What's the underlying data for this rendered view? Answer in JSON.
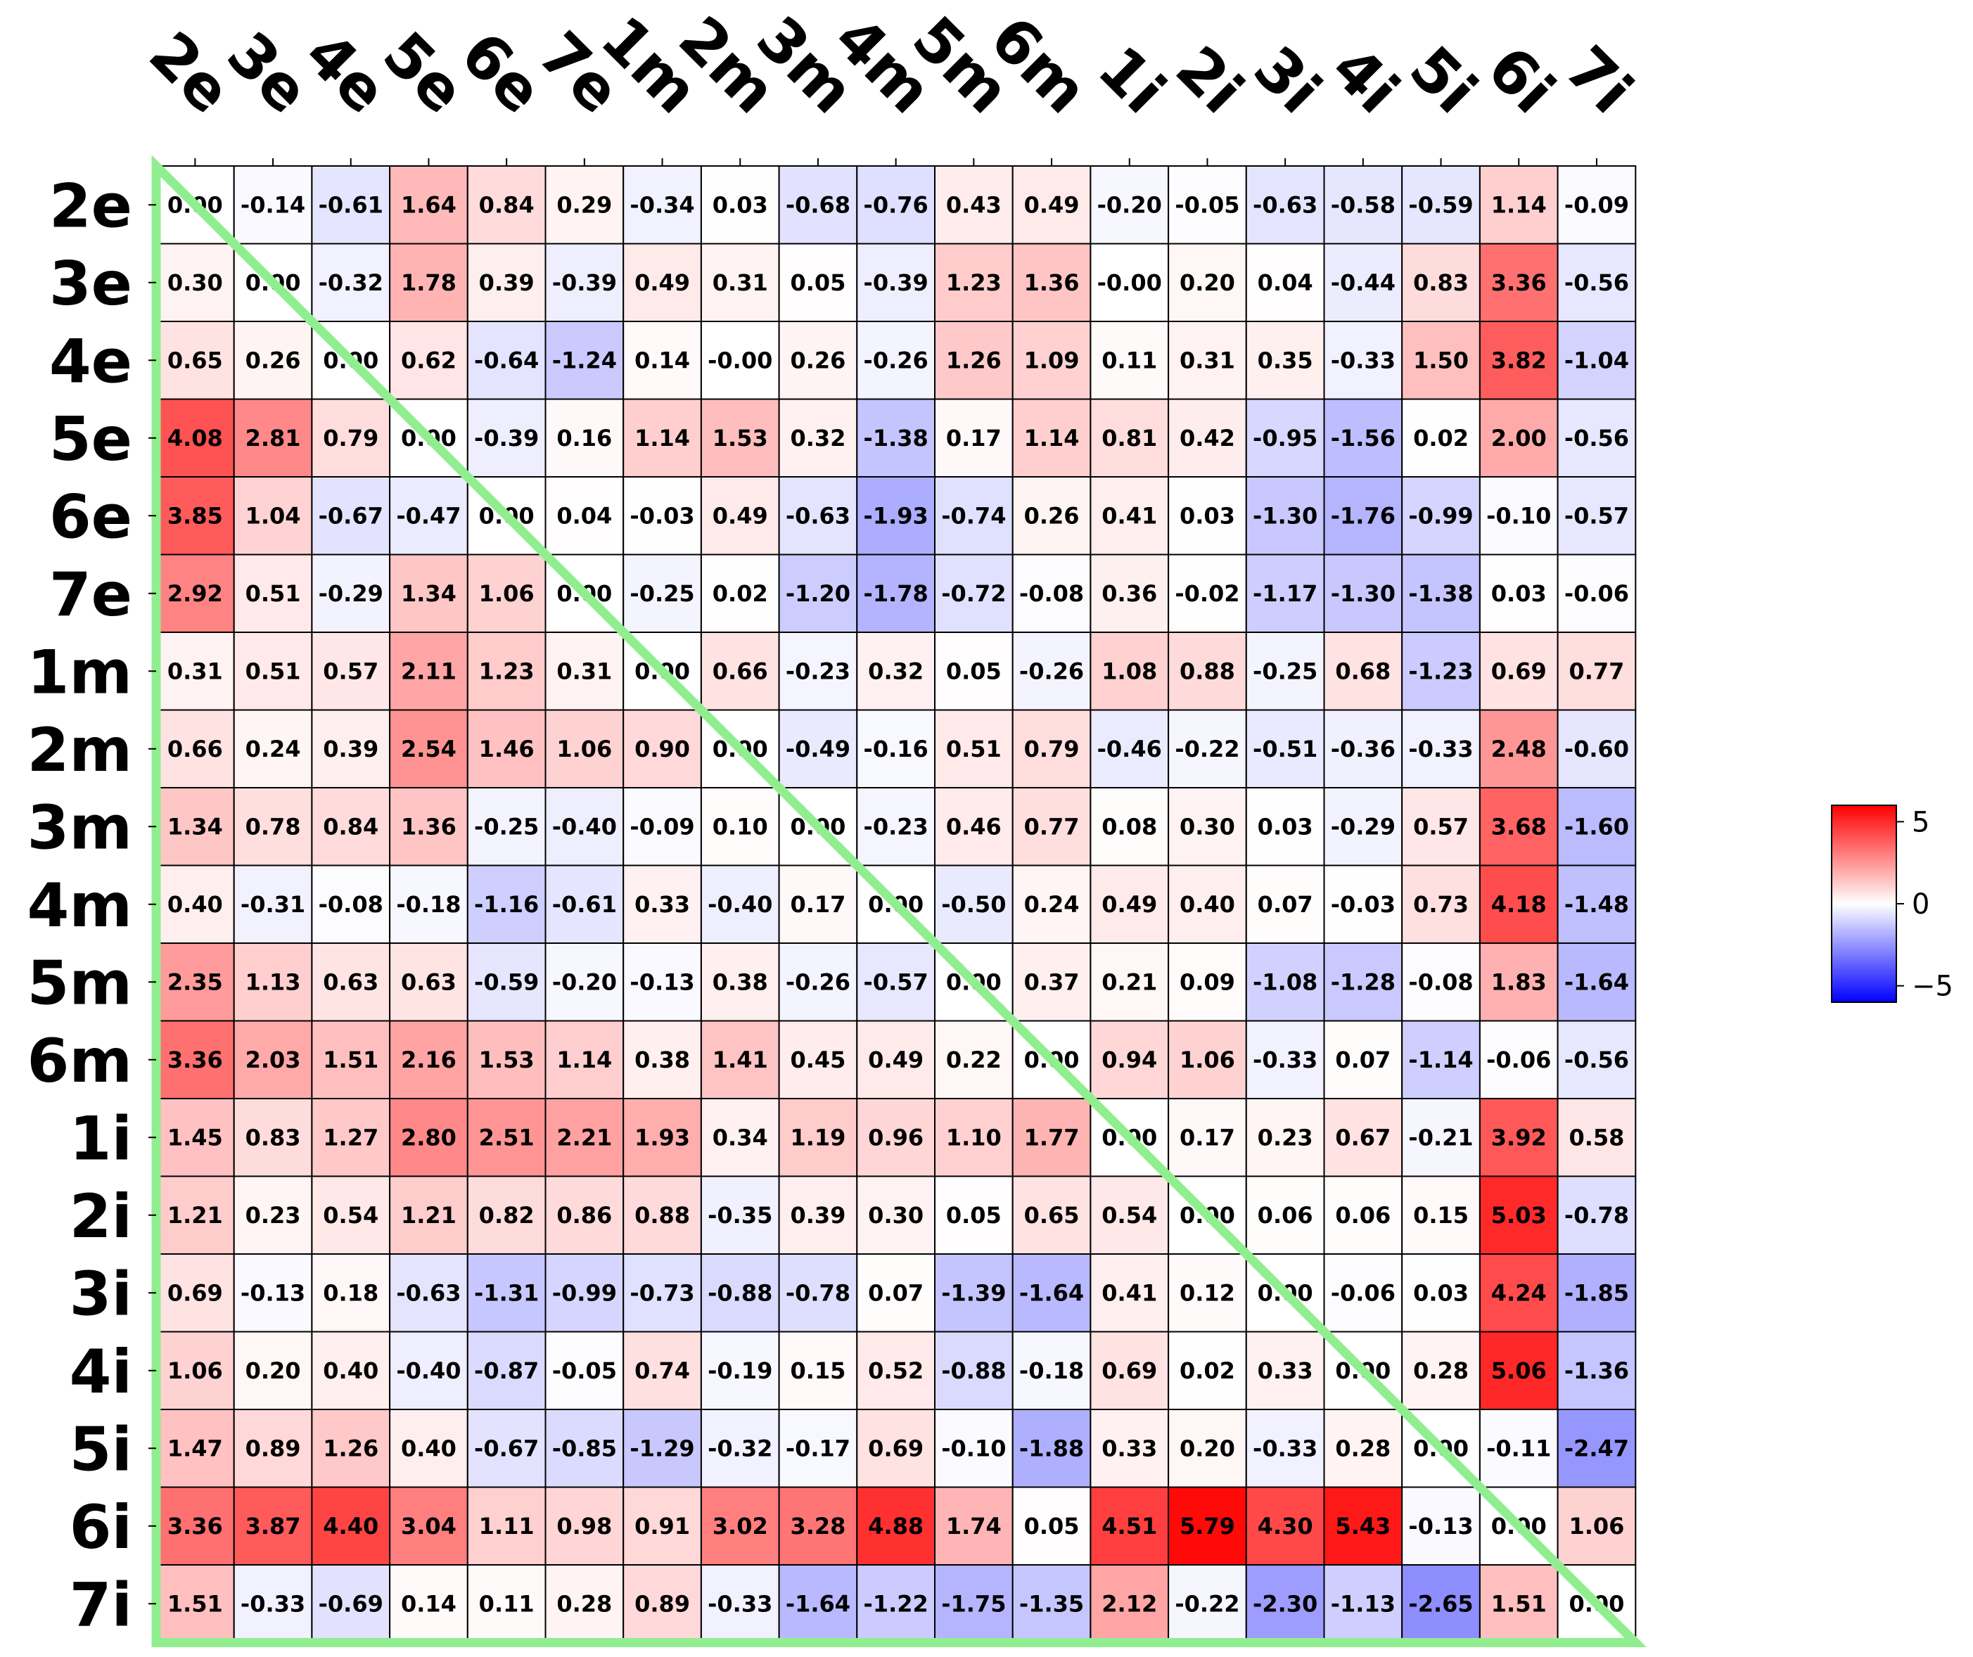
{
  "chart_data": {
    "type": "heatmap",
    "row_labels": [
      "2e",
      "3e",
      "4e",
      "5e",
      "6e",
      "7e",
      "1m",
      "2m",
      "3m",
      "4m",
      "5m",
      "6m",
      "1i",
      "2i",
      "3i",
      "4i",
      "5i",
      "6i",
      "7i"
    ],
    "col_labels": [
      "2e",
      "3e",
      "4e",
      "5e",
      "6e",
      "7e",
      "1m",
      "2m",
      "3m",
      "4m",
      "5m",
      "6m",
      "1i",
      "2i",
      "3i",
      "4i",
      "5i",
      "6i",
      "7i"
    ],
    "values": [
      [
        "0.00",
        "-0.14",
        "-0.61",
        "1.64",
        "0.84",
        "0.29",
        "-0.34",
        "0.03",
        "-0.68",
        "-0.76",
        "0.43",
        "0.49",
        "-0.20",
        "-0.05",
        "-0.63",
        "-0.58",
        "-0.59",
        "1.14",
        "-0.09"
      ],
      [
        "0.30",
        "0.00",
        "-0.32",
        "1.78",
        "0.39",
        "-0.39",
        "0.49",
        "0.31",
        "0.05",
        "-0.39",
        "1.23",
        "1.36",
        "-0.00",
        "0.20",
        "0.04",
        "-0.44",
        "0.83",
        "3.36",
        "-0.56"
      ],
      [
        "0.65",
        "0.26",
        "0.00",
        "0.62",
        "-0.64",
        "-1.24",
        "0.14",
        "-0.00",
        "0.26",
        "-0.26",
        "1.26",
        "1.09",
        "0.11",
        "0.31",
        "0.35",
        "-0.33",
        "1.50",
        "3.82",
        "-1.04"
      ],
      [
        "4.08",
        "2.81",
        "0.79",
        "0.00",
        "-0.39",
        "0.16",
        "1.14",
        "1.53",
        "0.32",
        "-1.38",
        "0.17",
        "1.14",
        "0.81",
        "0.42",
        "-0.95",
        "-1.56",
        "0.02",
        "2.00",
        "-0.56"
      ],
      [
        "3.85",
        "1.04",
        "-0.67",
        "-0.47",
        "0.00",
        "0.04",
        "-0.03",
        "0.49",
        "-0.63",
        "-1.93",
        "-0.74",
        "0.26",
        "0.41",
        "0.03",
        "-1.30",
        "-1.76",
        "-0.99",
        "-0.10",
        "-0.57"
      ],
      [
        "2.92",
        "0.51",
        "-0.29",
        "1.34",
        "1.06",
        "0.00",
        "-0.25",
        "0.02",
        "-1.20",
        "-1.78",
        "-0.72",
        "-0.08",
        "0.36",
        "-0.02",
        "-1.17",
        "-1.30",
        "-1.38",
        "0.03",
        "-0.06"
      ],
      [
        "0.31",
        "0.51",
        "0.57",
        "2.11",
        "1.23",
        "0.31",
        "0.00",
        "0.66",
        "-0.23",
        "0.32",
        "0.05",
        "-0.26",
        "1.08",
        "0.88",
        "-0.25",
        "0.68",
        "-1.23",
        "0.69",
        "0.77"
      ],
      [
        "0.66",
        "0.24",
        "0.39",
        "2.54",
        "1.46",
        "1.06",
        "0.90",
        "0.00",
        "-0.49",
        "-0.16",
        "0.51",
        "0.79",
        "-0.46",
        "-0.22",
        "-0.51",
        "-0.36",
        "-0.33",
        "2.48",
        "-0.60"
      ],
      [
        "1.34",
        "0.78",
        "0.84",
        "1.36",
        "-0.25",
        "-0.40",
        "-0.09",
        "0.10",
        "0.00",
        "-0.23",
        "0.46",
        "0.77",
        "0.08",
        "0.30",
        "0.03",
        "-0.29",
        "0.57",
        "3.68",
        "-1.60"
      ],
      [
        "0.40",
        "-0.31",
        "-0.08",
        "-0.18",
        "-1.16",
        "-0.61",
        "0.33",
        "-0.40",
        "0.17",
        "0.00",
        "-0.50",
        "0.24",
        "0.49",
        "0.40",
        "0.07",
        "-0.03",
        "0.73",
        "4.18",
        "-1.48"
      ],
      [
        "2.35",
        "1.13",
        "0.63",
        "0.63",
        "-0.59",
        "-0.20",
        "-0.13",
        "0.38",
        "-0.26",
        "-0.57",
        "0.00",
        "0.37",
        "0.21",
        "0.09",
        "-1.08",
        "-1.28",
        "-0.08",
        "1.83",
        "-1.64"
      ],
      [
        "3.36",
        "2.03",
        "1.51",
        "2.16",
        "1.53",
        "1.14",
        "0.38",
        "1.41",
        "0.45",
        "0.49",
        "0.22",
        "0.00",
        "0.94",
        "1.06",
        "-0.33",
        "0.07",
        "-1.14",
        "-0.06",
        "-0.56"
      ],
      [
        "1.45",
        "0.83",
        "1.27",
        "2.80",
        "2.51",
        "2.21",
        "1.93",
        "0.34",
        "1.19",
        "0.96",
        "1.10",
        "1.77",
        "0.00",
        "0.17",
        "0.23",
        "0.67",
        "-0.21",
        "3.92",
        "0.58"
      ],
      [
        "1.21",
        "0.23",
        "0.54",
        "1.21",
        "0.82",
        "0.86",
        "0.88",
        "-0.35",
        "0.39",
        "0.30",
        "0.05",
        "0.65",
        "0.54",
        "0.00",
        "0.06",
        "0.06",
        "0.15",
        "5.03",
        "-0.78"
      ],
      [
        "0.69",
        "-0.13",
        "0.18",
        "-0.63",
        "-1.31",
        "-0.99",
        "-0.73",
        "-0.88",
        "-0.78",
        "0.07",
        "-1.39",
        "-1.64",
        "0.41",
        "0.12",
        "0.00",
        "-0.06",
        "0.03",
        "4.24",
        "-1.85"
      ],
      [
        "1.06",
        "0.20",
        "0.40",
        "-0.40",
        "-0.87",
        "-0.05",
        "0.74",
        "-0.19",
        "0.15",
        "0.52",
        "-0.88",
        "-0.18",
        "0.69",
        "0.02",
        "0.33",
        "0.00",
        "0.28",
        "5.06",
        "-1.36"
      ],
      [
        "1.47",
        "0.89",
        "1.26",
        "0.40",
        "-0.67",
        "-0.85",
        "-1.29",
        "-0.32",
        "-0.17",
        "0.69",
        "-0.10",
        "-1.88",
        "0.33",
        "0.20",
        "-0.33",
        "0.28",
        "0.00",
        "-0.11",
        "-2.47"
      ],
      [
        "3.36",
        "3.87",
        "4.40",
        "3.04",
        "1.11",
        "0.98",
        "0.91",
        "3.02",
        "3.28",
        "4.88",
        "1.74",
        "0.05",
        "4.51",
        "5.79",
        "4.30",
        "5.43",
        "-0.13",
        "0.00",
        "1.06"
      ],
      [
        "1.51",
        "-0.33",
        "-0.69",
        "0.14",
        "0.11",
        "0.28",
        "0.89",
        "-0.33",
        "-1.64",
        "-1.22",
        "-1.75",
        "-1.35",
        "2.12",
        "-0.22",
        "-2.30",
        "-1.13",
        "-2.65",
        "1.51",
        "0.00"
      ]
    ],
    "colormap": "bwr",
    "vmin": -6,
    "vmax": 6,
    "colorbar_ticks": [
      5,
      0,
      -5
    ],
    "colorbar_tick_labels": [
      "5",
      "0",
      "−5"
    ],
    "overlay_outline_color": "#90ee90",
    "grid": true,
    "legend_placement": "right (colorbar)"
  }
}
